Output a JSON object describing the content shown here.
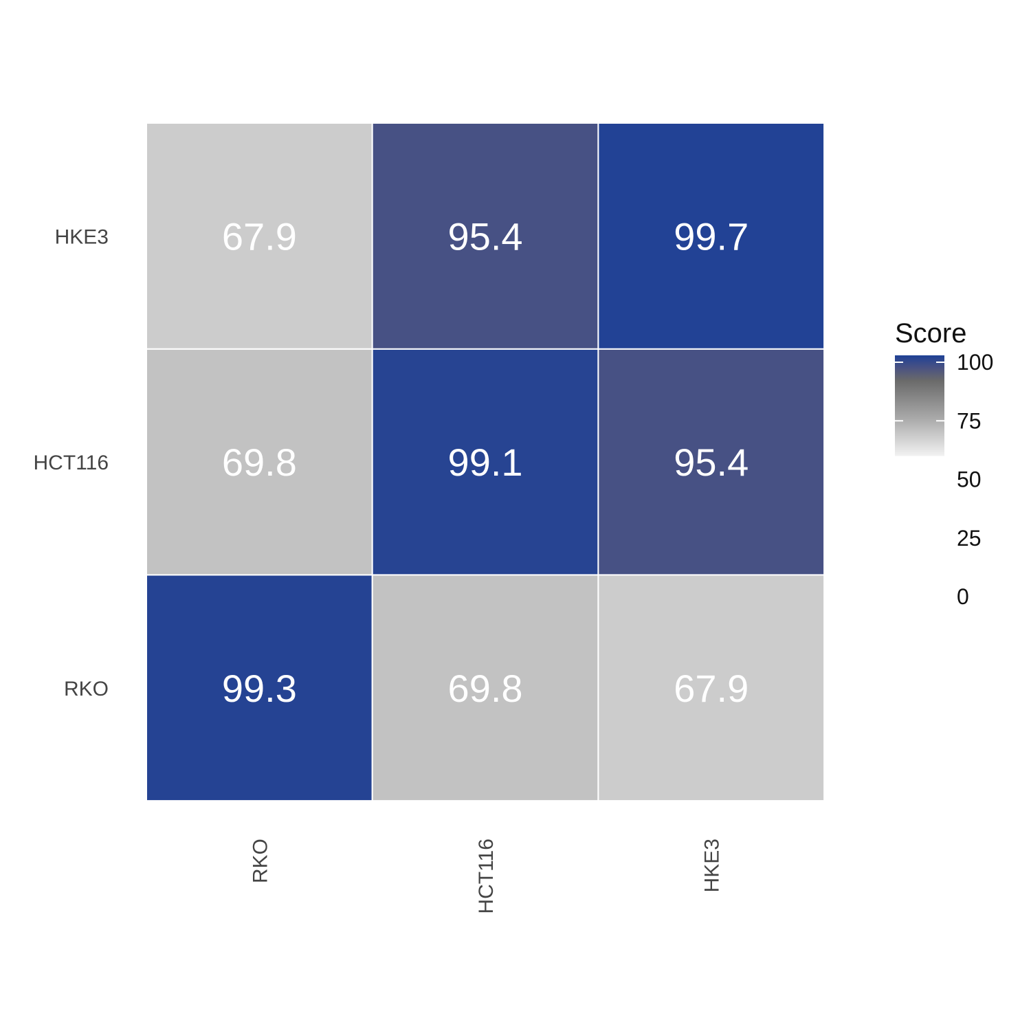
{
  "chart_data": {
    "type": "heatmap",
    "title": "",
    "xlabel": "",
    "ylabel": "",
    "x_categories": [
      "RKO",
      "HCT116",
      "HKE3"
    ],
    "y_categories": [
      "RKO",
      "HCT116",
      "HKE3"
    ],
    "values": [
      [
        99.3,
        69.8,
        67.9
      ],
      [
        69.8,
        99.1,
        95.4
      ],
      [
        67.9,
        95.4,
        99.7
      ]
    ],
    "cell_labels": [
      [
        "99.3",
        "69.8",
        "67.9"
      ],
      [
        "69.8",
        "99.1",
        "95.4"
      ],
      [
        "67.9",
        "95.4",
        "99.7"
      ]
    ],
    "legend": {
      "title": "Score",
      "ticks": [
        "100",
        "75",
        "50",
        "25",
        "0"
      ],
      "tick_values": [
        100,
        75,
        50,
        25,
        0
      ],
      "gradient_range": [
        60,
        100
      ],
      "gradient_stops": [
        {
          "value": 60,
          "color": "#f2f2f2"
        },
        {
          "value": 75,
          "color": "#a9a9a9"
        },
        {
          "value": 90,
          "color": "#6a6a6a"
        },
        {
          "value": 95,
          "color": "#4a5282"
        },
        {
          "value": 100,
          "color": "#1f4196"
        }
      ],
      "placement": "right"
    },
    "colors": {
      "cell_border": "#ffffff",
      "cell_text": "#ffffff"
    }
  }
}
